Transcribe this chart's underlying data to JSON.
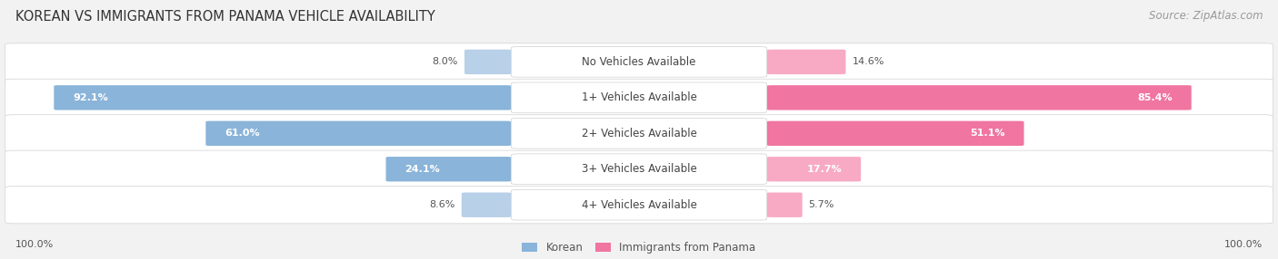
{
  "title": "KOREAN VS IMMIGRANTS FROM PANAMA VEHICLE AVAILABILITY",
  "source": "Source: ZipAtlas.com",
  "categories": [
    "No Vehicles Available",
    "1+ Vehicles Available",
    "2+ Vehicles Available",
    "3+ Vehicles Available",
    "4+ Vehicles Available"
  ],
  "korean_values": [
    8.0,
    92.1,
    61.0,
    24.1,
    8.6
  ],
  "panama_values": [
    14.6,
    85.4,
    51.1,
    17.7,
    5.7
  ],
  "korean_color": "#8ab4d9",
  "panama_color": "#f075a0",
  "korean_color_light": "#b8d0e8",
  "panama_color_light": "#f8aac4",
  "korean_label": "Korean",
  "panama_label": "Immigrants from Panama",
  "background_color": "#f2f2f2",
  "row_bg_color": "#ffffff",
  "row_border_color": "#d8d8d8",
  "max_value": 100.0,
  "title_fontsize": 10.5,
  "source_fontsize": 8.5,
  "label_fontsize": 8.5,
  "value_fontsize": 8.0,
  "legend_fontsize": 8.5,
  "footer_label": "100.0%"
}
